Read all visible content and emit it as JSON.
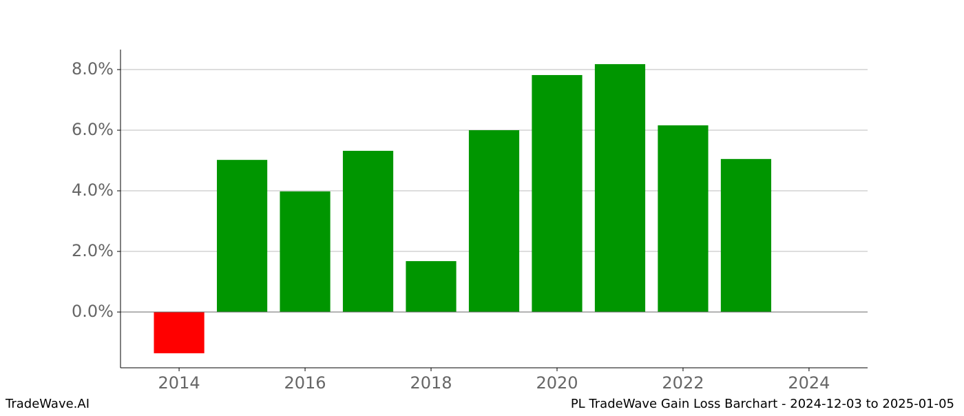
{
  "chart_data": {
    "type": "bar",
    "title": "PL TradeWave Gain Loss Barchart - 2024-12-03 to 2025-01-05",
    "source": "TradeWave.AI",
    "x": [
      2014,
      2015,
      2016,
      2017,
      2018,
      2019,
      2020,
      2021,
      2022,
      2023
    ],
    "values": [
      -1.36,
      5.02,
      3.98,
      5.32,
      1.68,
      6.0,
      7.82,
      8.18,
      6.16,
      5.05
    ],
    "positive_color": "#009600",
    "negative_color": "#ff0000",
    "xlim": [
      2013.07,
      2024.93
    ],
    "xticks": [
      2014,
      2016,
      2018,
      2020,
      2022,
      2024
    ],
    "ylim": [
      -1.84,
      8.66
    ],
    "yticks": [
      {
        "value": 0,
        "label": "0.0%"
      },
      {
        "value": 2,
        "label": "2.0%"
      },
      {
        "value": 4,
        "label": "4.0%"
      },
      {
        "value": 6,
        "label": "6.0%"
      },
      {
        "value": 8,
        "label": "8.0%"
      }
    ],
    "grid": true
  }
}
